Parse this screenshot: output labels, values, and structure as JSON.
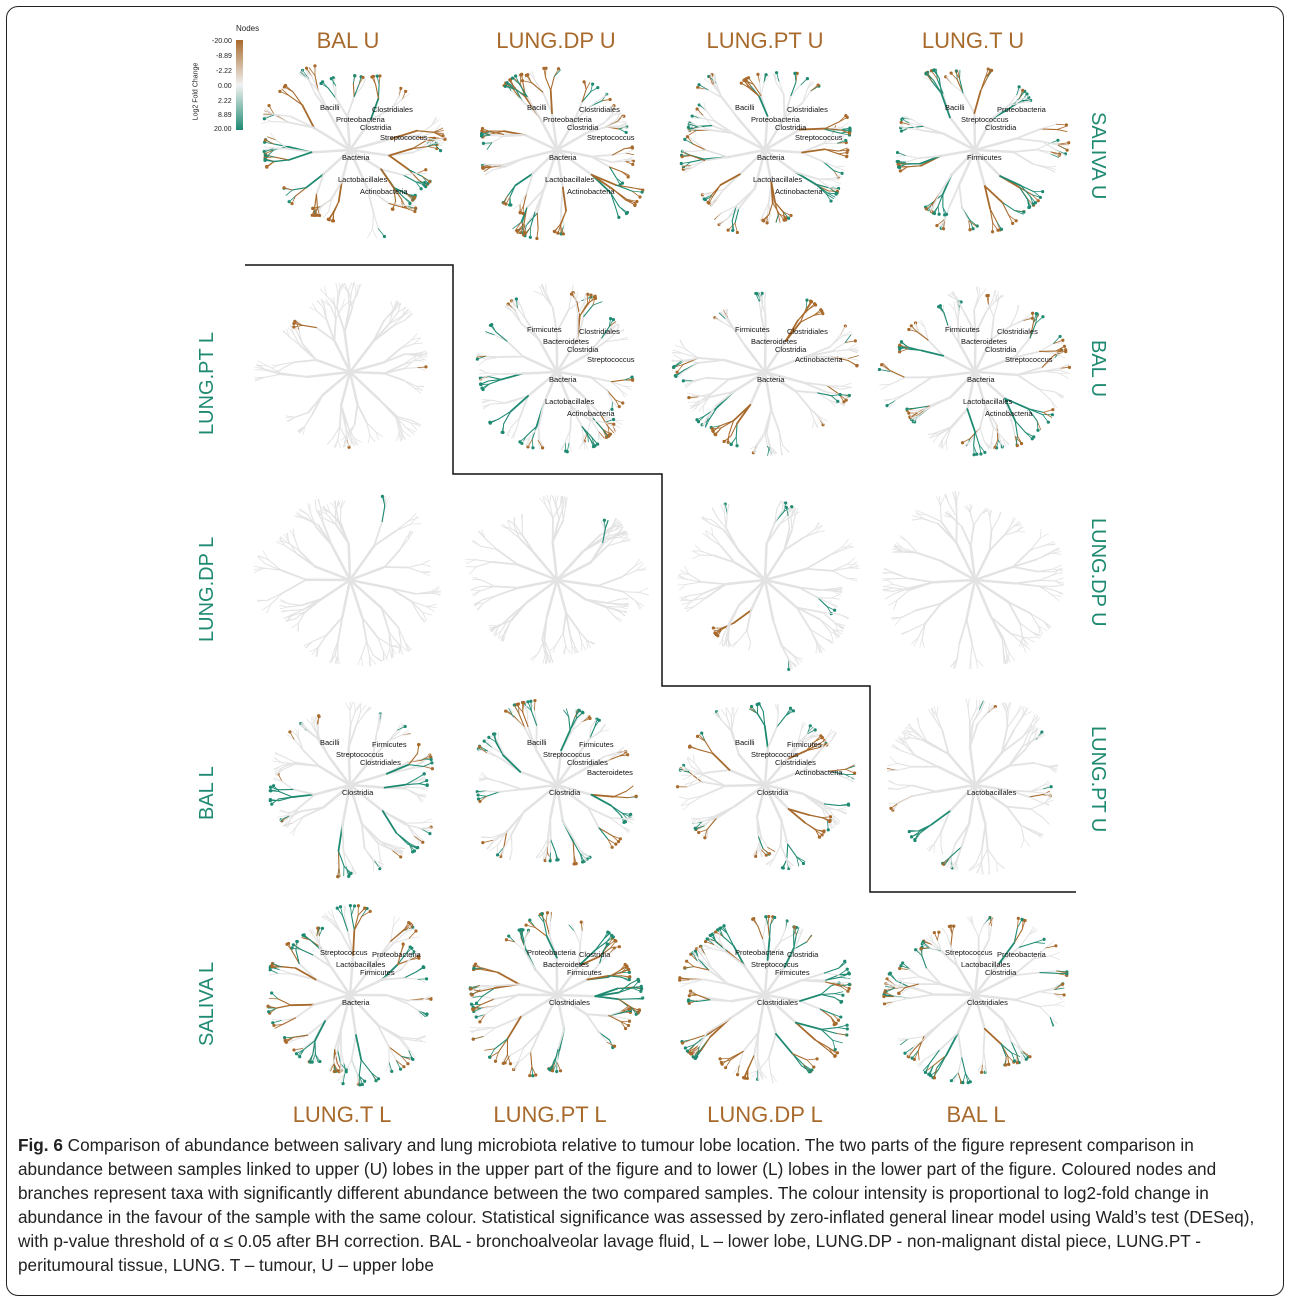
{
  "figure": {
    "col_labels_top": [
      "BAL U",
      "LUNG.DP U",
      "LUNG.PT U",
      "LUNG.T U"
    ],
    "col_labels_bottom": [
      "LUNG.T L",
      "LUNG.PT L",
      "LUNG.DP L",
      "BAL L"
    ],
    "row_labels_left": [
      "LUNG.PT L",
      "LUNG.DP L",
      "BAL L",
      "SALIVA L"
    ],
    "row_labels_right": [
      "SALIVA U",
      "BAL U",
      "LUNG.DP U",
      "LUNG.PT U"
    ],
    "legend": {
      "title": "Nodes",
      "axis_label": "Log2 Fold Change",
      "ticks": [
        "-20.00",
        "-8.89",
        "-2.22",
        "0.00",
        "2.22",
        "8.89",
        "20.00"
      ]
    },
    "colors": {
      "brown": "#a86a2c",
      "teal": "#1f8a72",
      "grey": "#e3e3e3"
    },
    "tree_labels": {
      "bacteria": "Bacteria",
      "clostridia": "Clostridia",
      "clostridiales": "Clostridiales",
      "bacilli": "Bacilli",
      "firmicutes": "Firmicutes",
      "proteobacteria": "Proteobacteria",
      "bacteroidetes": "Bacteroidetes",
      "streptococcus": "Streptococcus",
      "lactobacillales": "Lactobacillales",
      "actinobacteria": "Actinobacteria"
    }
  },
  "caption": {
    "label": "Fig. 6",
    "text": " Comparison of abundance between salivary and lung microbiota relative to tumour lobe location. The two parts of the figure represent comparison in abundance between samples linked to upper (U) lobes in the upper part of the figure and to lower (L) lobes in the lower part of the figure. Coloured nodes and branches represent taxa with significantly different abundance between the two compared samples. The colour intensity is proportional to log2-fold change in abundance in the favour of the sample with the same colour. Statistical significance was assessed by zero-inflated general linear model using Wald’s test (DESeq), with p-value threshold of α ≤ 0.05 after BH correction. BAL - bronchoalveolar lavage fluid, L – lower lobe, LUNG.DP - non-malignant distal piece, LUNG.PT - peritumoural tissue, LUNG. T – tumour, U – upper lobe"
  }
}
